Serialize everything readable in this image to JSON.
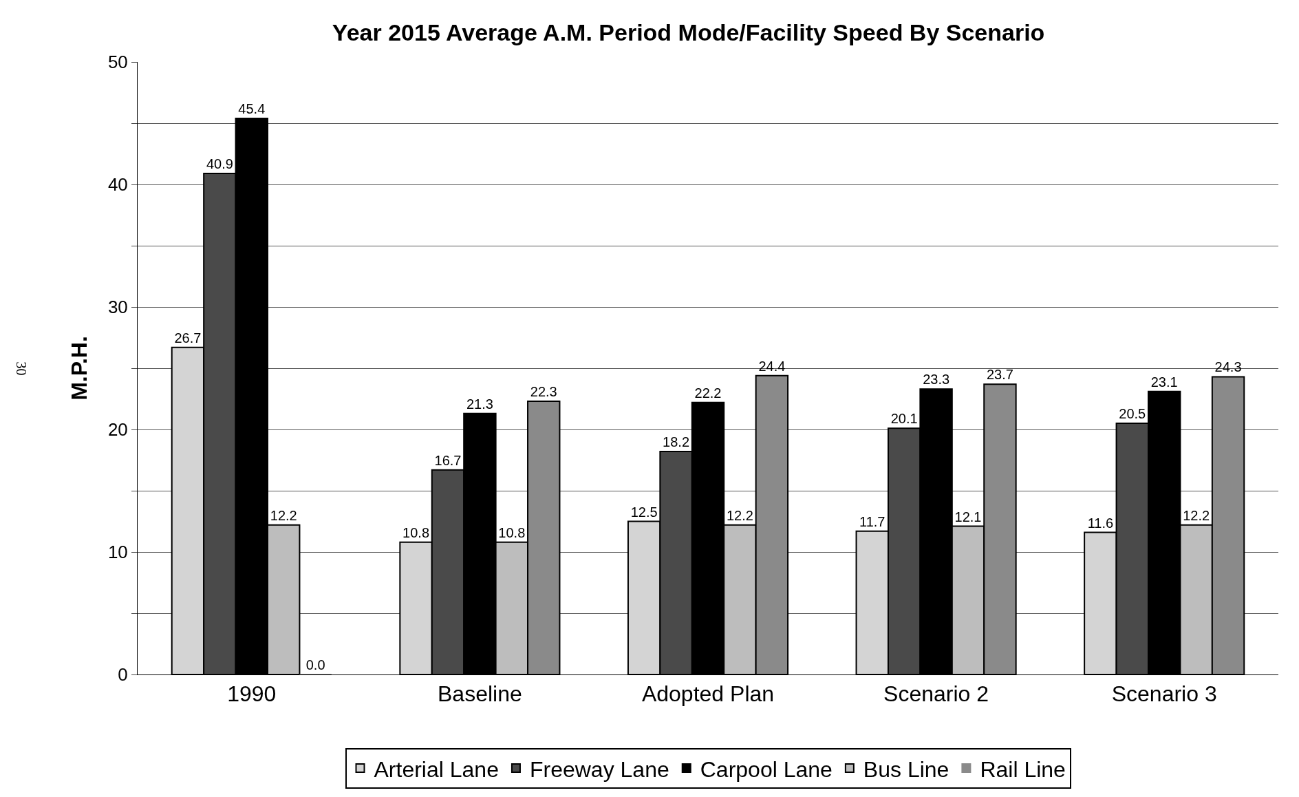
{
  "chart_data": {
    "type": "bar",
    "title": "Year 2015 Average A.M. Period Mode/Facility Speed By Scenario",
    "ylabel": "M.P.H.",
    "categories": [
      "1990",
      "Baseline",
      "Adopted Plan",
      "Scenario 2",
      "Scenario 3"
    ],
    "series": [
      {
        "name": "Arterial Lane",
        "color": "#d4d4d4",
        "values": [
          26.7,
          10.8,
          12.5,
          11.7,
          11.6
        ],
        "value_labels": [
          "26.7",
          "10.8",
          "12.5",
          "11.7",
          "11.6"
        ]
      },
      {
        "name": "Freeway Lane",
        "color": "#4a4a4a",
        "values": [
          40.9,
          16.7,
          18.2,
          20.1,
          20.5
        ],
        "value_labels": [
          "40.9",
          "16.7",
          "18.2",
          "20.1",
          "20.5"
        ]
      },
      {
        "name": "Carpool Lane",
        "color": "#000000",
        "values": [
          45.4,
          21.3,
          22.2,
          23.3,
          23.1
        ],
        "value_labels": [
          "45.4",
          "21.3",
          "22.2",
          "23.3",
          "23.1"
        ]
      },
      {
        "name": "Bus Line",
        "color": "#bdbdbd",
        "values": [
          12.2,
          10.8,
          12.2,
          12.1,
          12.2
        ],
        "value_labels": [
          "12.2",
          "10.8",
          "12.2",
          "12.1",
          "12.2"
        ]
      },
      {
        "name": "Rail Line",
        "color": "#8a8a8a",
        "values": [
          0,
          22.3,
          24.4,
          23.7,
          24.3
        ],
        "value_labels": [
          "0.0",
          "22.3",
          "24.4",
          "23.7",
          "24.3"
        ]
      }
    ],
    "ylim": [
      0,
      50
    ],
    "yticks": [
      0,
      {
        "value": 5,
        "label": null
      },
      10,
      {
        "value": 15,
        "label": null
      },
      20,
      {
        "value": 25,
        "label": null
      },
      30,
      {
        "value": 35,
        "label": null
      },
      40,
      {
        "value": 45,
        "label": null
      },
      50
    ],
    "grid": "y",
    "legend": "bottom",
    "annotations": [
      "30"
    ]
  }
}
